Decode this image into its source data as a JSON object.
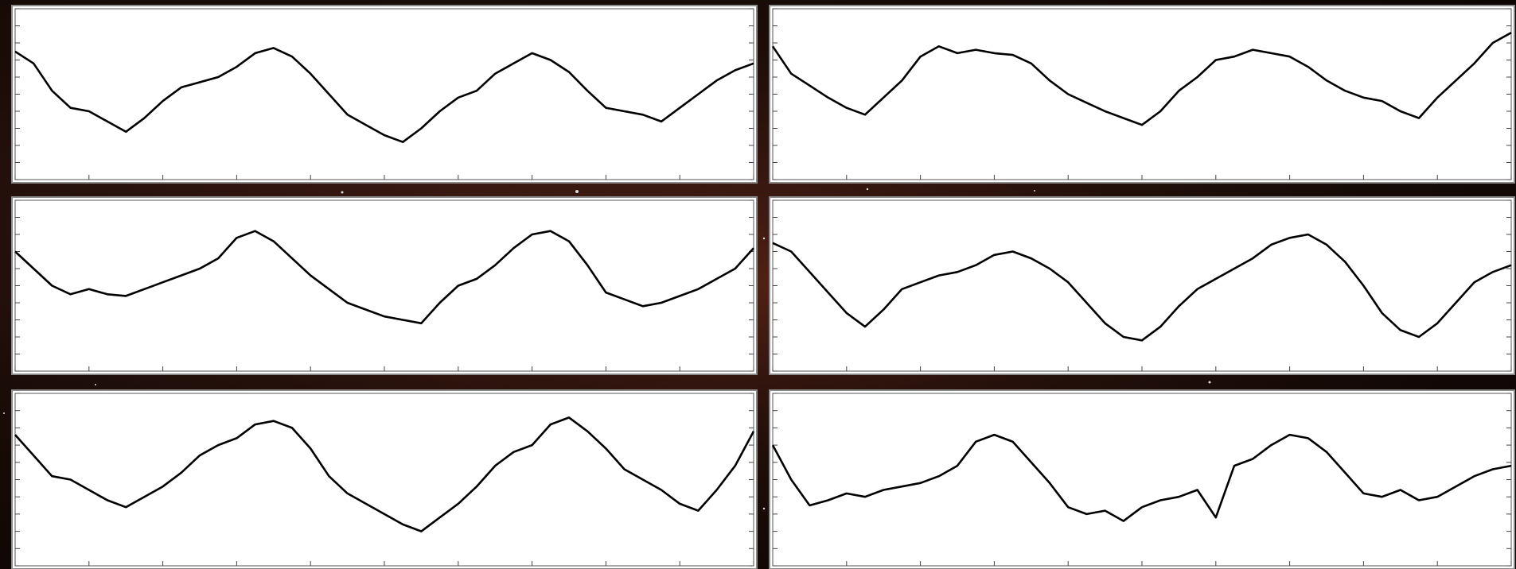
{
  "chart_data": [
    {
      "type": "line",
      "x": [
        0,
        2.5,
        5,
        7.5,
        10,
        12.5,
        15,
        17.5,
        20,
        22.5,
        25,
        27.5,
        30,
        32.5,
        35,
        37.5,
        40,
        42.5,
        45,
        47.5,
        50,
        52.5,
        55,
        57.5,
        60,
        62.5,
        65,
        67.5,
        70,
        72.5,
        75,
        77.5,
        80,
        82.5,
        85,
        87.5,
        90,
        92.5,
        95,
        97.5,
        100
      ],
      "series": [
        {
          "color": "#000000",
          "values": [
            75,
            68,
            52,
            42,
            40,
            34,
            28,
            36,
            46,
            54,
            57,
            60,
            66,
            74,
            77,
            72,
            62,
            50,
            38,
            32,
            26,
            22,
            30,
            40,
            48,
            52,
            62,
            68,
            74,
            70,
            63,
            52,
            42,
            40,
            38,
            34,
            42,
            50,
            58,
            64,
            68
          ]
        }
      ],
      "xlim": [
        0,
        100
      ],
      "ylim": [
        0,
        100
      ],
      "xticks": [
        0,
        10,
        20,
        30,
        40,
        50,
        60,
        70,
        80,
        90,
        100
      ],
      "yticks": [
        0,
        10,
        20,
        30,
        40,
        50,
        60,
        70,
        80,
        90,
        100
      ]
    },
    {
      "type": "line",
      "x": [
        0,
        2.5,
        5,
        7.5,
        10,
        12.5,
        15,
        17.5,
        20,
        22.5,
        25,
        27.5,
        30,
        32.5,
        35,
        37.5,
        40,
        42.5,
        45,
        47.5,
        50,
        52.5,
        55,
        57.5,
        60,
        62.5,
        65,
        67.5,
        70,
        72.5,
        75,
        77.5,
        80,
        82.5,
        85,
        87.5,
        90,
        92.5,
        95,
        97.5,
        100
      ],
      "series": [
        {
          "color": "#000000",
          "values": [
            78,
            62,
            55,
            48,
            42,
            38,
            48,
            58,
            72,
            78,
            74,
            76,
            74,
            73,
            68,
            58,
            50,
            45,
            40,
            36,
            32,
            40,
            52,
            60,
            70,
            72,
            76,
            74,
            72,
            66,
            58,
            52,
            48,
            46,
            40,
            36,
            48,
            58,
            68,
            80,
            86
          ]
        }
      ],
      "xlim": [
        0,
        100
      ],
      "ylim": [
        0,
        100
      ],
      "xticks": [
        0,
        10,
        20,
        30,
        40,
        50,
        60,
        70,
        80,
        90,
        100
      ],
      "yticks": [
        0,
        10,
        20,
        30,
        40,
        50,
        60,
        70,
        80,
        90,
        100
      ]
    },
    {
      "type": "line",
      "x": [
        0,
        2.5,
        5,
        7.5,
        10,
        12.5,
        15,
        17.5,
        20,
        22.5,
        25,
        27.5,
        30,
        32.5,
        35,
        37.5,
        40,
        42.5,
        45,
        47.5,
        50,
        52.5,
        55,
        57.5,
        60,
        62.5,
        65,
        67.5,
        70,
        72.5,
        75,
        77.5,
        80,
        82.5,
        85,
        87.5,
        90,
        92.5,
        95,
        97.5,
        100
      ],
      "series": [
        {
          "color": "#000000",
          "values": [
            70,
            60,
            50,
            45,
            48,
            45,
            44,
            48,
            52,
            56,
            60,
            66,
            78,
            82,
            76,
            66,
            56,
            48,
            40,
            36,
            32,
            30,
            28,
            40,
            50,
            54,
            62,
            72,
            80,
            82,
            76,
            62,
            46,
            42,
            38,
            40,
            44,
            48,
            54,
            60,
            72
          ]
        }
      ],
      "xlim": [
        0,
        100
      ],
      "ylim": [
        0,
        100
      ],
      "xticks": [
        0,
        10,
        20,
        30,
        40,
        50,
        60,
        70,
        80,
        90,
        100
      ],
      "yticks": [
        0,
        10,
        20,
        30,
        40,
        50,
        60,
        70,
        80,
        90,
        100
      ]
    },
    {
      "type": "line",
      "x": [
        0,
        2.5,
        5,
        7.5,
        10,
        12.5,
        15,
        17.5,
        20,
        22.5,
        25,
        27.5,
        30,
        32.5,
        35,
        37.5,
        40,
        42.5,
        45,
        47.5,
        50,
        52.5,
        55,
        57.5,
        60,
        62.5,
        65,
        67.5,
        70,
        72.5,
        75,
        77.5,
        80,
        82.5,
        85,
        87.5,
        90,
        92.5,
        95,
        97.5,
        100
      ],
      "series": [
        {
          "color": "#000000",
          "values": [
            75,
            70,
            58,
            46,
            34,
            26,
            36,
            48,
            52,
            56,
            58,
            62,
            68,
            70,
            66,
            60,
            52,
            40,
            28,
            20,
            18,
            26,
            38,
            48,
            54,
            60,
            66,
            74,
            78,
            80,
            74,
            64,
            50,
            34,
            24,
            20,
            28,
            40,
            52,
            58,
            62
          ]
        }
      ],
      "xlim": [
        0,
        100
      ],
      "ylim": [
        0,
        100
      ],
      "xticks": [
        0,
        10,
        20,
        30,
        40,
        50,
        60,
        70,
        80,
        90,
        100
      ],
      "yticks": [
        0,
        10,
        20,
        30,
        40,
        50,
        60,
        70,
        80,
        90,
        100
      ]
    },
    {
      "type": "line",
      "x": [
        0,
        2.5,
        5,
        7.5,
        10,
        12.5,
        15,
        17.5,
        20,
        22.5,
        25,
        27.5,
        30,
        32.5,
        35,
        37.5,
        40,
        42.5,
        45,
        47.5,
        50,
        52.5,
        55,
        57.5,
        60,
        62.5,
        65,
        67.5,
        70,
        72.5,
        75,
        77.5,
        80,
        82.5,
        85,
        87.5,
        90,
        92.5,
        95,
        97.5,
        100
      ],
      "series": [
        {
          "color": "#000000",
          "values": [
            76,
            64,
            52,
            50,
            44,
            38,
            34,
            40,
            46,
            54,
            64,
            70,
            74,
            82,
            84,
            80,
            68,
            52,
            42,
            36,
            30,
            24,
            20,
            28,
            36,
            46,
            58,
            66,
            70,
            82,
            86,
            78,
            68,
            56,
            50,
            44,
            36,
            32,
            44,
            58,
            78
          ]
        }
      ],
      "xlim": [
        0,
        100
      ],
      "ylim": [
        0,
        100
      ],
      "xticks": [
        0,
        10,
        20,
        30,
        40,
        50,
        60,
        70,
        80,
        90,
        100
      ],
      "yticks": [
        0,
        10,
        20,
        30,
        40,
        50,
        60,
        70,
        80,
        90,
        100
      ]
    },
    {
      "type": "line",
      "x": [
        0,
        2.5,
        5,
        7.5,
        10,
        12.5,
        15,
        17.5,
        20,
        22.5,
        25,
        27.5,
        30,
        32.5,
        35,
        37.5,
        40,
        42.5,
        45,
        47.5,
        50,
        52.5,
        55,
        57.5,
        60,
        62.5,
        65,
        67.5,
        70,
        72.5,
        75,
        77.5,
        80,
        82.5,
        85,
        87.5,
        90,
        92.5,
        95,
        97.5,
        100
      ],
      "series": [
        {
          "color": "#000000",
          "values": [
            70,
            50,
            35,
            38,
            42,
            40,
            44,
            46,
            48,
            52,
            58,
            72,
            76,
            72,
            60,
            48,
            34,
            30,
            32,
            26,
            34,
            38,
            40,
            44,
            28,
            58,
            62,
            70,
            76,
            74,
            66,
            54,
            42,
            40,
            44,
            38,
            40,
            46,
            52,
            56,
            58
          ]
        }
      ],
      "xlim": [
        0,
        100
      ],
      "ylim": [
        0,
        100
      ],
      "xticks": [
        0,
        10,
        20,
        30,
        40,
        50,
        60,
        70,
        80,
        90,
        100
      ],
      "yticks": [
        0,
        10,
        20,
        30,
        40,
        50,
        60,
        70,
        80,
        90,
        100
      ]
    }
  ]
}
